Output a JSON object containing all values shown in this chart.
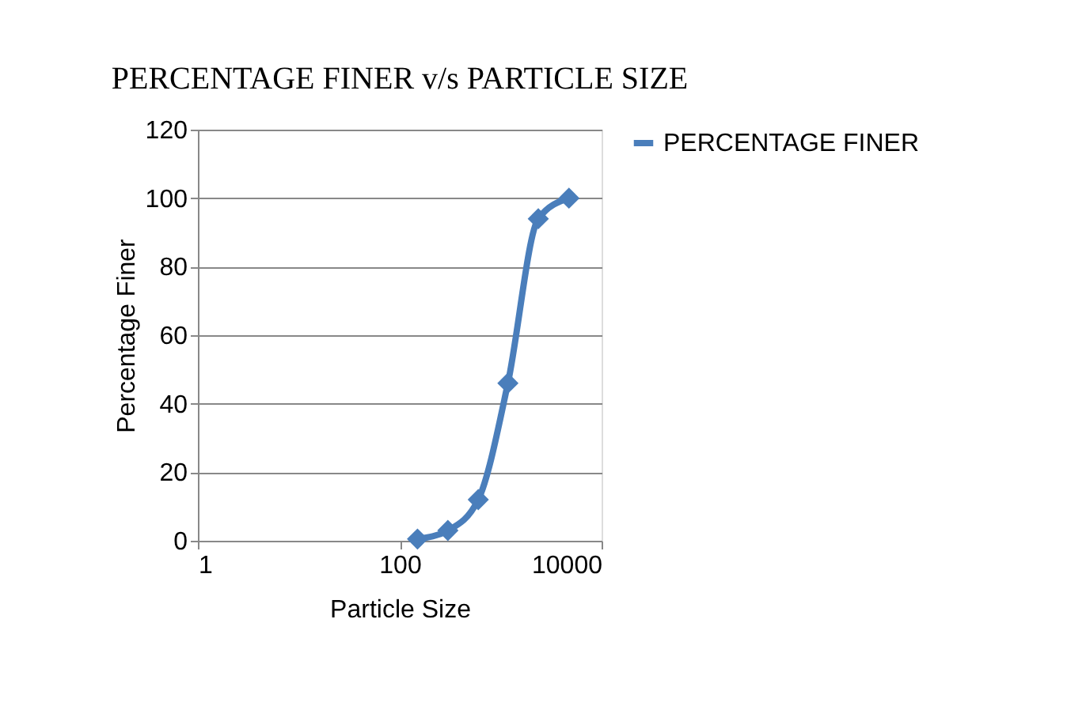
{
  "chart_data": {
    "type": "line",
    "title": "PERCENTAGE FINER v/s PARTICLE SIZE",
    "xlabel": "Particle Size",
    "ylabel": "Percentage Finer",
    "x": [
      150,
      300,
      600,
      1180,
      2360,
      4750
    ],
    "series": [
      {
        "name": "PERCENTAGE FINER",
        "color": "#4a7ebb",
        "values": [
          0.5,
          3,
          12,
          46,
          94,
          100
        ]
      }
    ],
    "log": "x",
    "xlim": [
      1,
      10000
    ],
    "xticks": [
      1,
      100,
      10000
    ],
    "ylim": [
      0,
      120
    ],
    "yticks": [
      0,
      20,
      40,
      60,
      80,
      100,
      120
    ],
    "grid": "y",
    "legend": "right",
    "marker": "diamond",
    "line_style": "solid"
  }
}
